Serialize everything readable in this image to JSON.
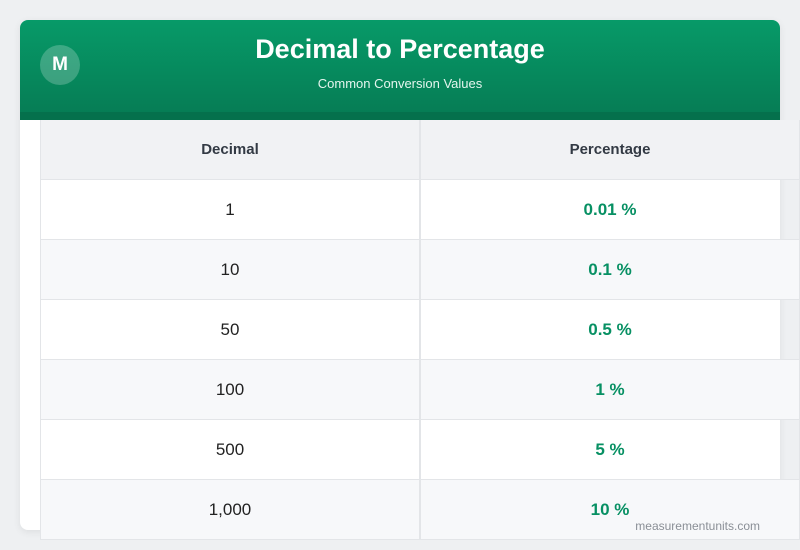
{
  "header": {
    "logo": "M",
    "title": "Decimal to Percentage",
    "subtitle": "Common Conversion Values"
  },
  "table": {
    "columns": [
      "Decimal",
      "Percentage"
    ],
    "rows": [
      [
        "1",
        "0.01 %"
      ],
      [
        "10",
        "0.1 %"
      ],
      [
        "50",
        "0.5 %"
      ],
      [
        "100",
        "1 %"
      ],
      [
        "500",
        "5 %"
      ],
      [
        "1,000",
        "10 %"
      ]
    ]
  },
  "footer": "measurementunits.com"
}
